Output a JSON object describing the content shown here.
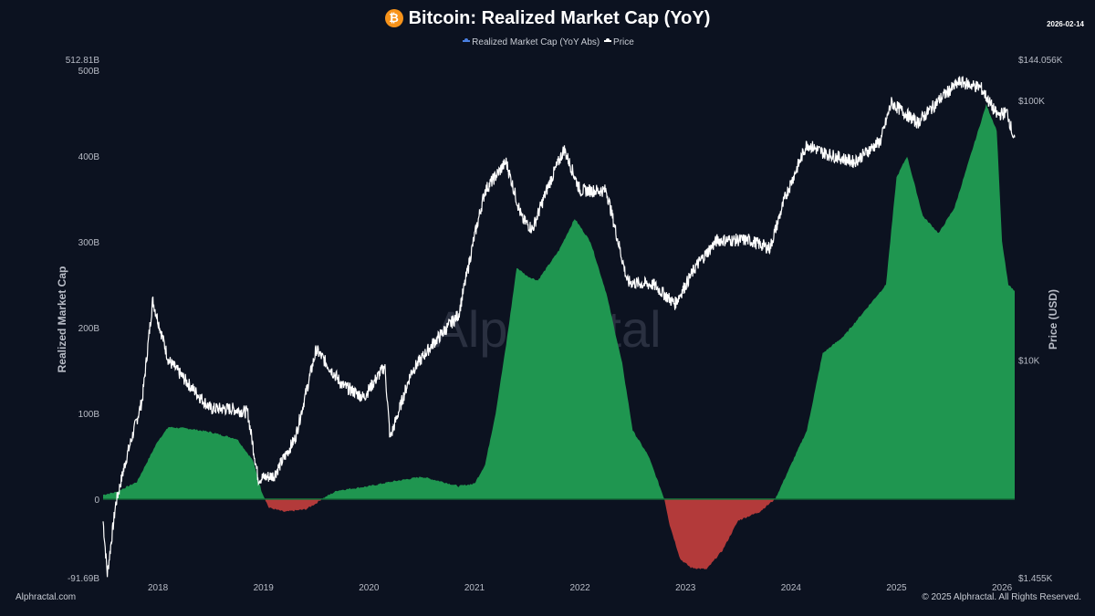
{
  "header": {
    "title": "Bitcoin: Realized Market Cap (YoY)",
    "date": "2026-02-14",
    "logo_icon": "bitcoin-icon"
  },
  "footer": {
    "left": "Alphractal.com",
    "right": "© 2025 Alphractal. All Rights Reserved."
  },
  "watermark": "Alphractal",
  "chart_data": {
    "type": "area",
    "title": "Bitcoin: Realized Market Cap (YoY)",
    "legend_position": "top",
    "grid": false,
    "colors": {
      "positive": "#1f9650",
      "negative": "#b33a3a",
      "price": "#ffffff",
      "legend_rmc": "#4a7fe0",
      "background": "#0c1220"
    },
    "x_ticks": [
      "2018",
      "2019",
      "2020",
      "2021",
      "2022",
      "2023",
      "2024",
      "2025",
      "2026"
    ],
    "xlim": [
      2017.48,
      2026.12
    ],
    "y_left": {
      "label": "Realized Market Cap",
      "ylim": [
        -91.69,
        512.81
      ],
      "unit": "B",
      "ticks": [
        "512.81B",
        "500B",
        "400B",
        "300B",
        "200B",
        "100B",
        "0",
        "-91.69B"
      ],
      "tick_values": [
        512.81,
        500,
        400,
        300,
        200,
        100,
        0,
        -91.69
      ]
    },
    "y_right": {
      "label": "Price (USD)",
      "scale": "log",
      "ylim": [
        1455,
        144056
      ],
      "ticks": [
        "$144.056K",
        "$100K",
        "$10K",
        "$1.455K"
      ],
      "tick_values": [
        144056,
        100000,
        10000,
        1455
      ]
    },
    "series": [
      {
        "name": "Realized Market Cap (YoY Abs)",
        "axis": "left",
        "x": [
          2017.48,
          2017.6,
          2017.8,
          2018.0,
          2018.1,
          2018.3,
          2018.5,
          2018.75,
          2018.9,
          2018.98,
          2019.05,
          2019.2,
          2019.4,
          2019.5,
          2019.55,
          2019.7,
          2020.0,
          2020.2,
          2020.5,
          2020.7,
          2020.85,
          2021.0,
          2021.1,
          2021.2,
          2021.3,
          2021.4,
          2021.5,
          2021.6,
          2021.8,
          2021.95,
          2022.1,
          2022.25,
          2022.4,
          2022.5,
          2022.65,
          2022.8,
          2022.85,
          2022.95,
          2023.05,
          2023.2,
          2023.35,
          2023.5,
          2023.7,
          2023.85,
          2024.0,
          2024.15,
          2024.3,
          2024.5,
          2024.7,
          2024.9,
          2025.0,
          2025.1,
          2025.25,
          2025.4,
          2025.55,
          2025.7,
          2025.85,
          2025.95,
          2026.0,
          2026.06,
          2026.12
        ],
        "values": [
          5,
          8,
          20,
          68,
          84,
          82,
          78,
          70,
          45,
          10,
          -10,
          -15,
          -12,
          -5,
          0,
          10,
          15,
          20,
          26,
          20,
          15,
          18,
          40,
          100,
          180,
          270,
          260,
          255,
          290,
          327,
          300,
          240,
          158,
          80,
          50,
          0,
          -30,
          -70,
          -80,
          -82,
          -60,
          -25,
          -15,
          0,
          40,
          80,
          170,
          190,
          220,
          250,
          375,
          400,
          330,
          310,
          340,
          400,
          460,
          430,
          300,
          250,
          242
        ]
      },
      {
        "name": "Price",
        "axis": "right",
        "x": [
          2017.48,
          2017.52,
          2017.6,
          2017.7,
          2017.85,
          2017.95,
          2018.1,
          2018.3,
          2018.5,
          2018.7,
          2018.85,
          2018.95,
          2019.1,
          2019.3,
          2019.5,
          2019.75,
          2019.95,
          2020.15,
          2020.2,
          2020.4,
          2020.6,
          2020.85,
          2021.0,
          2021.1,
          2021.3,
          2021.45,
          2021.55,
          2021.7,
          2021.85,
          2022.0,
          2022.25,
          2022.45,
          2022.7,
          2022.9,
          2023.1,
          2023.3,
          2023.6,
          2023.8,
          2023.95,
          2024.15,
          2024.3,
          2024.6,
          2024.85,
          2024.95,
          2025.2,
          2025.45,
          2025.6,
          2025.8,
          2025.95,
          2026.05,
          2026.12
        ],
        "values": [
          2400,
          1500,
          2800,
          4200,
          7000,
          17000,
          10000,
          8000,
          6500,
          6500,
          6300,
          3500,
          3600,
          5000,
          11000,
          8000,
          7200,
          9500,
          5000,
          9000,
          11500,
          15000,
          30000,
          45000,
          58000,
          35000,
          32000,
          47000,
          65000,
          45000,
          45000,
          20000,
          19500,
          16500,
          23000,
          29000,
          29000,
          27000,
          43000,
          68000,
          63000,
          58000,
          70000,
          98000,
          82000,
          105000,
          118000,
          112000,
          88000,
          90000,
          69000
        ]
      }
    ]
  }
}
